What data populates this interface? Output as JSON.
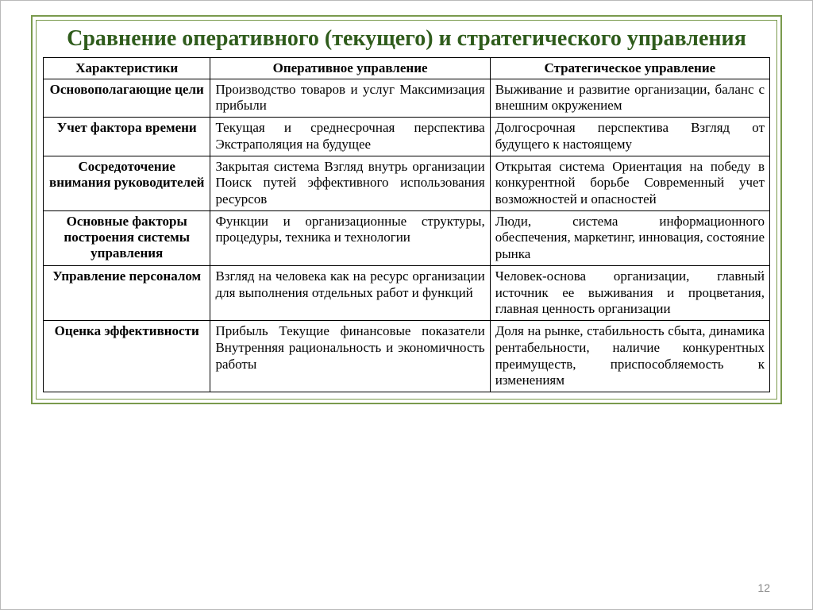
{
  "title": "Сравнение оперативного (текущего) и стратегического управления",
  "page_number": "12",
  "colors": {
    "title_color": "#2f5c1c",
    "frame_color": "#7a9a4d",
    "border_color": "#000000",
    "text_color": "#000000",
    "pagenum_color": "#888888",
    "background": "#ffffff"
  },
  "typography": {
    "title_fontsize": 28,
    "body_fontsize": 17,
    "font_family": "Times New Roman"
  },
  "table": {
    "columns": [
      "Характеристики",
      "Оперативное управление",
      "Стратегическое управление"
    ],
    "col_widths_pct": [
      23,
      38.5,
      38.5
    ],
    "rows": [
      {
        "char": "Основополагающие цели",
        "op": "Производство товаров и услуг Максимизация прибыли",
        "st": "Выживание и развитие организации, баланс с внешним окружением"
      },
      {
        "char": "Учет фактора времени",
        "op": "Текущая и среднесрочная перспектива Экстраполяция на будущее",
        "st": "Долгосрочная перспектива Взгляд от будущего к настоящему"
      },
      {
        "char": "Сосредоточение внимания руководителей",
        "op": "Закрытая система Взгляд внутрь организации Поиск путей эффективного использования ресурсов",
        "st": "Открытая система Ориентация на победу в конкурентной борьбе Современный учет возможностей и опасностей"
      },
      {
        "char": "Основные факторы построения системы управления",
        "op": "Функции и организационные структуры, процедуры, техника и технологии",
        "st": "Люди, система информационного обеспечения, маркетинг, инновация, состояние рынка"
      },
      {
        "char": "Управление персоналом",
        "op": "Взгляд на человека как на ресурс организации для выполнения отдельных работ и функций",
        "st": "Человек-основа организации, главный источник ее выживания и процветания, главная ценность организации"
      },
      {
        "char": "Оценка эффективности",
        "op": "Прибыль Текущие финансовые показатели Внутренняя рациональность и экономичность работы",
        "st": "Доля на рынке, стабильность сбыта, динамика рентабельности, наличие конкурентных преимуществ, приспособляемость к изменениям"
      }
    ]
  }
}
